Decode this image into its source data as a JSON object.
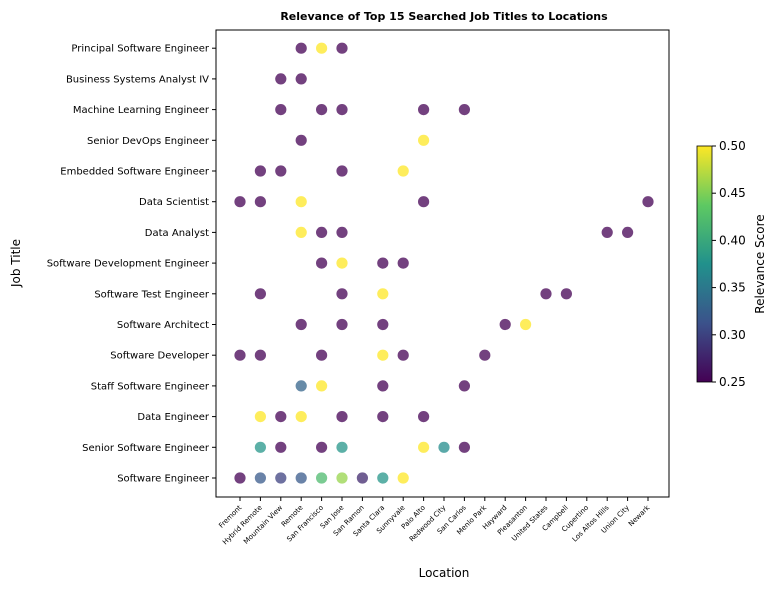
{
  "chart_data": {
    "type": "scatter",
    "title": "Relevance of Top 15 Searched Job Titles to Locations",
    "xlabel": "Location",
    "ylabel": "Job Title",
    "colorbar_label": "Relevance Score",
    "colorbar_range": [
      0.25,
      0.5
    ],
    "colorbar_ticks": [
      "0.25",
      "0.30",
      "0.35",
      "0.40",
      "0.45",
      "0.50"
    ],
    "colormap": "viridis",
    "locations": [
      "Fremont",
      "Hybrid Remote",
      "Mountain View",
      "Remote",
      "San Francisco",
      "San Jose",
      "San Ramon",
      "Santa Clara",
      "Sunnyvale",
      "Palo Alto",
      "Redwood City",
      "San Carlos",
      "Menlo Park",
      "Hayward",
      "Pleasanton",
      "United States",
      "Campbell",
      "Cupertino",
      "Los Altos Hills",
      "Union City",
      "Newark"
    ],
    "job_titles": [
      "Software Engineer",
      "Senior Software Engineer",
      "Data Engineer",
      "Staff Software Engineer",
      "Software Developer",
      "Software Architect",
      "Software Test Engineer",
      "Software Development Engineer",
      "Data Analyst",
      "Data Scientist",
      "Embedded Software Engineer",
      "Senior DevOps Engineer",
      "Machine Learning Engineer",
      "Business Systems Analyst IV",
      "Principal Software Engineer"
    ],
    "points": [
      {
        "x": "Fremont",
        "y": "Software Engineer",
        "score": 0.25
      },
      {
        "x": "Hybrid Remote",
        "y": "Software Engineer",
        "score": 0.32
      },
      {
        "x": "Mountain View",
        "y": "Software Engineer",
        "score": 0.3
      },
      {
        "x": "Remote",
        "y": "Software Engineer",
        "score": 0.32
      },
      {
        "x": "San Francisco",
        "y": "Software Engineer",
        "score": 0.42
      },
      {
        "x": "San Jose",
        "y": "Software Engineer",
        "score": 0.46
      },
      {
        "x": "San Ramon",
        "y": "Software Engineer",
        "score": 0.28
      },
      {
        "x": "Santa Clara",
        "y": "Software Engineer",
        "score": 0.38
      },
      {
        "x": "Sunnyvale",
        "y": "Software Engineer",
        "score": 0.5
      },
      {
        "x": "Hybrid Remote",
        "y": "Senior Software Engineer",
        "score": 0.38
      },
      {
        "x": "Mountain View",
        "y": "Senior Software Engineer",
        "score": 0.25
      },
      {
        "x": "San Francisco",
        "y": "Senior Software Engineer",
        "score": 0.25
      },
      {
        "x": "San Jose",
        "y": "Senior Software Engineer",
        "score": 0.38
      },
      {
        "x": "Palo Alto",
        "y": "Senior Software Engineer",
        "score": 0.5
      },
      {
        "x": "Redwood City",
        "y": "Senior Software Engineer",
        "score": 0.37
      },
      {
        "x": "San Carlos",
        "y": "Senior Software Engineer",
        "score": 0.25
      },
      {
        "x": "Hybrid Remote",
        "y": "Data Engineer",
        "score": 0.5
      },
      {
        "x": "Mountain View",
        "y": "Data Engineer",
        "score": 0.25
      },
      {
        "x": "Remote",
        "y": "Data Engineer",
        "score": 0.5
      },
      {
        "x": "San Jose",
        "y": "Data Engineer",
        "score": 0.25
      },
      {
        "x": "Santa Clara",
        "y": "Data Engineer",
        "score": 0.25
      },
      {
        "x": "Palo Alto",
        "y": "Data Engineer",
        "score": 0.25
      },
      {
        "x": "Remote",
        "y": "Staff Software Engineer",
        "score": 0.33
      },
      {
        "x": "San Francisco",
        "y": "Staff Software Engineer",
        "score": 0.5
      },
      {
        "x": "Santa Clara",
        "y": "Staff Software Engineer",
        "score": 0.25
      },
      {
        "x": "San Carlos",
        "y": "Staff Software Engineer",
        "score": 0.25
      },
      {
        "x": "Fremont",
        "y": "Software Developer",
        "score": 0.25
      },
      {
        "x": "Hybrid Remote",
        "y": "Software Developer",
        "score": 0.25
      },
      {
        "x": "San Francisco",
        "y": "Software Developer",
        "score": 0.25
      },
      {
        "x": "Santa Clara",
        "y": "Software Developer",
        "score": 0.5
      },
      {
        "x": "Sunnyvale",
        "y": "Software Developer",
        "score": 0.25
      },
      {
        "x": "Menlo Park",
        "y": "Software Developer",
        "score": 0.25
      },
      {
        "x": "Remote",
        "y": "Software Architect",
        "score": 0.25
      },
      {
        "x": "San Jose",
        "y": "Software Architect",
        "score": 0.25
      },
      {
        "x": "Santa Clara",
        "y": "Software Architect",
        "score": 0.25
      },
      {
        "x": "Hayward",
        "y": "Software Architect",
        "score": 0.25
      },
      {
        "x": "Pleasanton",
        "y": "Software Architect",
        "score": 0.5
      },
      {
        "x": "Hybrid Remote",
        "y": "Software Test Engineer",
        "score": 0.25
      },
      {
        "x": "San Jose",
        "y": "Software Test Engineer",
        "score": 0.25
      },
      {
        "x": "Santa Clara",
        "y": "Software Test Engineer",
        "score": 0.5
      },
      {
        "x": "United States",
        "y": "Software Test Engineer",
        "score": 0.25
      },
      {
        "x": "Campbell",
        "y": "Software Test Engineer",
        "score": 0.25
      },
      {
        "x": "San Francisco",
        "y": "Software Development Engineer",
        "score": 0.25
      },
      {
        "x": "San Jose",
        "y": "Software Development Engineer",
        "score": 0.5
      },
      {
        "x": "Santa Clara",
        "y": "Software Development Engineer",
        "score": 0.25
      },
      {
        "x": "Sunnyvale",
        "y": "Software Development Engineer",
        "score": 0.25
      },
      {
        "x": "Remote",
        "y": "Data Analyst",
        "score": 0.5
      },
      {
        "x": "San Francisco",
        "y": "Data Analyst",
        "score": 0.25
      },
      {
        "x": "San Jose",
        "y": "Data Analyst",
        "score": 0.25
      },
      {
        "x": "Los Altos Hills",
        "y": "Data Analyst",
        "score": 0.25
      },
      {
        "x": "Union City",
        "y": "Data Analyst",
        "score": 0.25
      },
      {
        "x": "Fremont",
        "y": "Data Scientist",
        "score": 0.25
      },
      {
        "x": "Hybrid Remote",
        "y": "Data Scientist",
        "score": 0.25
      },
      {
        "x": "Remote",
        "y": "Data Scientist",
        "score": 0.5
      },
      {
        "x": "Palo Alto",
        "y": "Data Scientist",
        "score": 0.25
      },
      {
        "x": "Newark",
        "y": "Data Scientist",
        "score": 0.25
      },
      {
        "x": "Hybrid Remote",
        "y": "Embedded Software Engineer",
        "score": 0.25
      },
      {
        "x": "Mountain View",
        "y": "Embedded Software Engineer",
        "score": 0.25
      },
      {
        "x": "San Jose",
        "y": "Embedded Software Engineer",
        "score": 0.25
      },
      {
        "x": "Sunnyvale",
        "y": "Embedded Software Engineer",
        "score": 0.5
      },
      {
        "x": "Remote",
        "y": "Senior DevOps Engineer",
        "score": 0.25
      },
      {
        "x": "Palo Alto",
        "y": "Senior DevOps Engineer",
        "score": 0.5
      },
      {
        "x": "Mountain View",
        "y": "Machine Learning Engineer",
        "score": 0.25
      },
      {
        "x": "San Francisco",
        "y": "Machine Learning Engineer",
        "score": 0.25
      },
      {
        "x": "San Jose",
        "y": "Machine Learning Engineer",
        "score": 0.25
      },
      {
        "x": "Palo Alto",
        "y": "Machine Learning Engineer",
        "score": 0.25
      },
      {
        "x": "San Carlos",
        "y": "Machine Learning Engineer",
        "score": 0.25
      },
      {
        "x": "Mountain View",
        "y": "Business Systems Analyst IV",
        "score": 0.25
      },
      {
        "x": "Remote",
        "y": "Business Systems Analyst IV",
        "score": 0.25
      },
      {
        "x": "Remote",
        "y": "Principal Software Engineer",
        "score": 0.25
      },
      {
        "x": "San Francisco",
        "y": "Principal Software Engineer",
        "score": 0.5
      },
      {
        "x": "San Jose",
        "y": "Principal Software Engineer",
        "score": 0.25
      }
    ],
    "grid": false,
    "legend": "colorbar-right"
  }
}
